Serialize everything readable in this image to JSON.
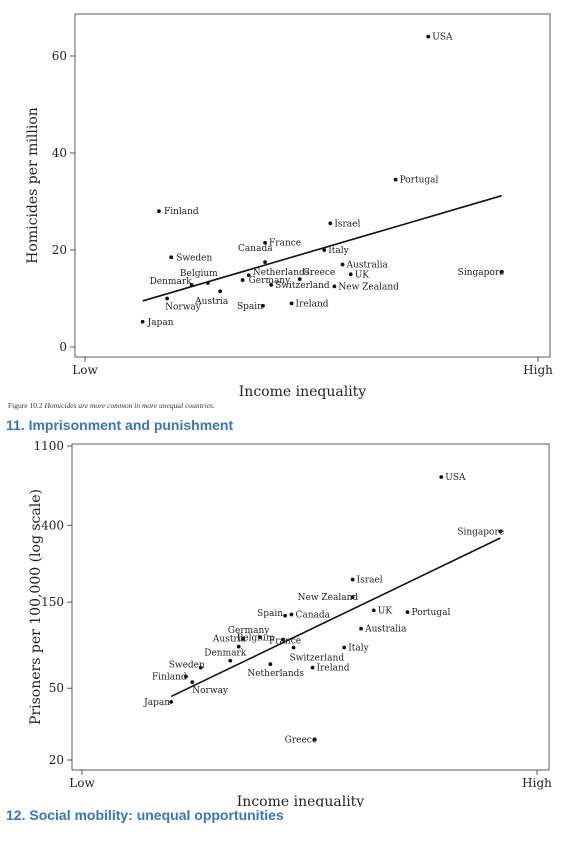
{
  "figure_caption": {
    "number": "Figure 10.2",
    "text": "Homicides are more common in more unequal countries."
  },
  "sections": {
    "imprisonment": "11. Imprisonment and punishment",
    "mobility": "12. Social mobility: unequal opportunities"
  },
  "chart_data": [
    {
      "type": "scatter",
      "title": "",
      "xlabel": "Income inequality",
      "ylabel": "Homicides per million",
      "x_tick_labels": [
        "Low",
        "High"
      ],
      "xlim": [
        0,
        100
      ],
      "ylim": [
        0,
        65
      ],
      "y_ticks": [
        0,
        20,
        40,
        60
      ],
      "y_tick_labels": [
        "0",
        "20",
        "40",
        "60"
      ],
      "grid": false,
      "trend_line": {
        "x": [
          8,
          96
        ],
        "y": [
          9.5,
          31.2
        ]
      },
      "points": [
        {
          "label": "USA",
          "x": 78,
          "y": 64
        },
        {
          "label": "Portugal",
          "x": 70,
          "y": 34.5
        },
        {
          "label": "Israel",
          "x": 54,
          "y": 25.5
        },
        {
          "label": "Finland",
          "x": 12,
          "y": 28
        },
        {
          "label": "France",
          "x": 38,
          "y": 21.5
        },
        {
          "label": "Italy",
          "x": 52.5,
          "y": 20
        },
        {
          "label": "Sweden",
          "x": 15,
          "y": 18.5
        },
        {
          "label": "Canada",
          "x": 38,
          "y": 17.5
        },
        {
          "label": "Australia",
          "x": 57,
          "y": 17
        },
        {
          "label": "UK",
          "x": 59,
          "y": 15
        },
        {
          "label": "Greece",
          "x": 46.5,
          "y": 14
        },
        {
          "label": "Netherlands",
          "x": 34,
          "y": 14.8
        },
        {
          "label": "Belgium",
          "x": 24,
          "y": 13.2
        },
        {
          "label": "Singapore",
          "x": 96,
          "y": 15.5
        },
        {
          "label": "Denmark",
          "x": 20,
          "y": 12.8
        },
        {
          "label": "Germany",
          "x": 32.5,
          "y": 13.8
        },
        {
          "label": "Switzerland",
          "x": 39.5,
          "y": 12.8
        },
        {
          "label": "New Zealand",
          "x": 55,
          "y": 12.5
        },
        {
          "label": "Austria",
          "x": 27,
          "y": 11.5
        },
        {
          "label": "Norway",
          "x": 14,
          "y": 10
        },
        {
          "label": "Ireland",
          "x": 44.5,
          "y": 9
        },
        {
          "label": "Spain",
          "x": 37.5,
          "y": 8.5
        },
        {
          "label": "Japan",
          "x": 8,
          "y": 5.2
        }
      ]
    },
    {
      "type": "scatter",
      "title": "",
      "xlabel": "Income inequality",
      "ylabel": "Prisoners per 100,000 (log scale)",
      "x_tick_labels": [
        "Low",
        "High"
      ],
      "xlim": [
        0,
        100
      ],
      "ylim": [
        17,
        1100
      ],
      "y_scale": "log",
      "y_ticks": [
        20,
        50,
        150,
        400,
        1100
      ],
      "y_tick_labels": [
        "20",
        "50",
        "150",
        "400",
        "1100"
      ],
      "grid": false,
      "trend_line": {
        "x": [
          19,
          97
        ],
        "y": [
          45,
          340
        ]
      },
      "points": [
        {
          "label": "USA",
          "x": 83,
          "y": 740
        },
        {
          "label": "Singapore",
          "x": 97,
          "y": 370
        },
        {
          "label": "Israel",
          "x": 62,
          "y": 200
        },
        {
          "label": "New Zealand",
          "x": 62,
          "y": 160
        },
        {
          "label": "UK",
          "x": 67,
          "y": 135
        },
        {
          "label": "Portugal",
          "x": 75,
          "y": 132
        },
        {
          "label": "Spain",
          "x": 46,
          "y": 126
        },
        {
          "label": "Canada",
          "x": 47.5,
          "y": 128
        },
        {
          "label": "Australia",
          "x": 64,
          "y": 107
        },
        {
          "label": "Germany",
          "x": 40,
          "y": 96
        },
        {
          "label": "France",
          "x": 45.5,
          "y": 93
        },
        {
          "label": "Austria",
          "x": 36,
          "y": 94
        },
        {
          "label": "Italy",
          "x": 60,
          "y": 84
        },
        {
          "label": "Switzerland",
          "x": 48,
          "y": 84
        },
        {
          "label": "Belgium",
          "x": 35,
          "y": 85
        },
        {
          "label": "Denmark",
          "x": 33,
          "y": 71
        },
        {
          "label": "Netherlands",
          "x": 42.5,
          "y": 68
        },
        {
          "label": "Ireland",
          "x": 52.5,
          "y": 65
        },
        {
          "label": "Sweden",
          "x": 26,
          "y": 65
        },
        {
          "label": "Finland",
          "x": 22.5,
          "y": 58
        },
        {
          "label": "Norway",
          "x": 24,
          "y": 54
        },
        {
          "label": "Japan",
          "x": 19,
          "y": 42
        },
        {
          "label": "Greece",
          "x": 53,
          "y": 26
        }
      ]
    }
  ]
}
